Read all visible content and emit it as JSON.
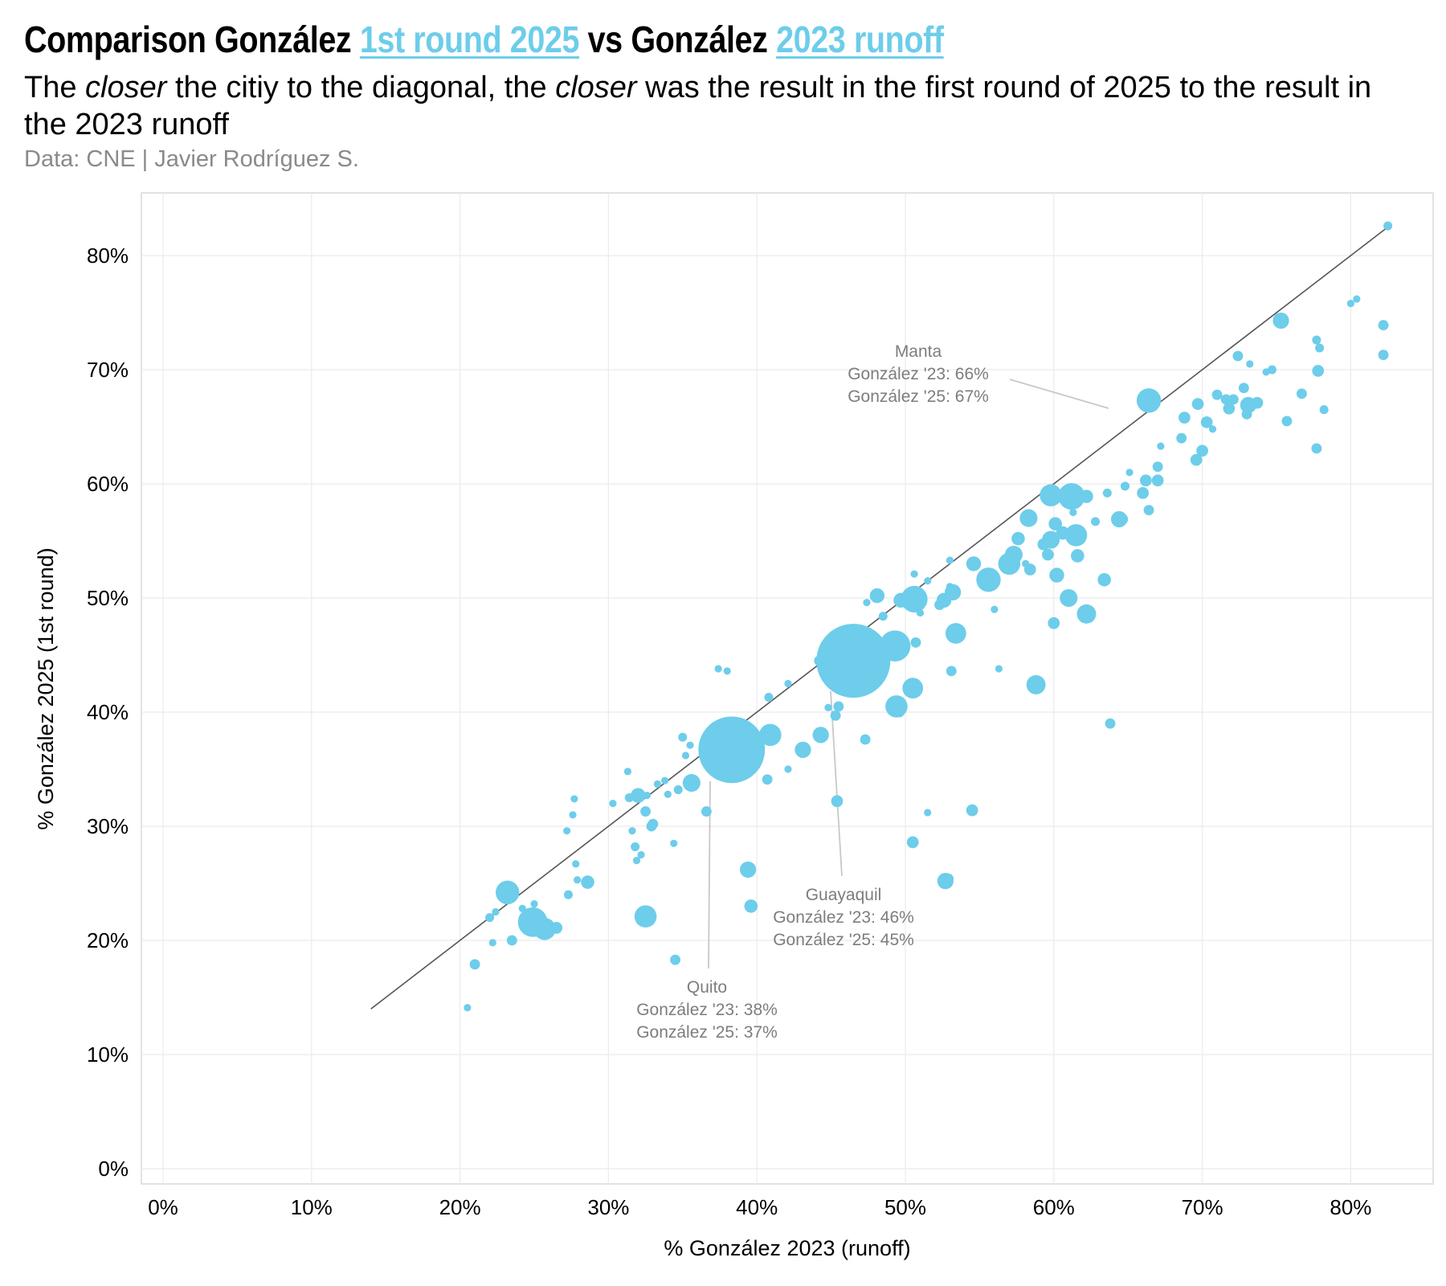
{
  "header": {
    "title_parts": [
      "Comparison González ",
      "1st round 2025",
      " vs González ",
      "2023 runoff"
    ],
    "subtitle_parts": [
      "The ",
      "closer",
      " the citiy to the diagonal, the ",
      "closer",
      " was the result in the first round of 2025 to the result in the 2023 runoff"
    ],
    "caption": "Data: CNE | Javier Rodríguez S."
  },
  "colors": {
    "accent": "#6dcdea",
    "diagonal": "#555555",
    "grid": "#ebebeb",
    "annotation": "#7d7d7d"
  },
  "chart_data": {
    "type": "scatter",
    "title": "Comparison González 1st round 2025 vs González 2023 runoff",
    "xlabel": "% González 2023 (runoff)",
    "ylabel": "% González 2025 (1st round)",
    "xlim": [
      0,
      85
    ],
    "ylim": [
      0,
      85
    ],
    "x_ticks": [
      0,
      10,
      20,
      30,
      40,
      50,
      60,
      70,
      80
    ],
    "y_ticks": [
      0,
      10,
      20,
      30,
      40,
      50,
      60,
      70,
      80
    ],
    "tick_labels": [
      "0%",
      "10%",
      "20%",
      "30%",
      "40%",
      "50%",
      "60%",
      "70%",
      "80%"
    ],
    "grid": true,
    "diagonal": {
      "from": 14,
      "to": 82.5
    },
    "points": [
      {
        "x": 46.5,
        "y": 44.5,
        "s": 10,
        "name": "Guayaquil"
      },
      {
        "x": 38.3,
        "y": 36.7,
        "s": 9,
        "name": "Quito"
      },
      {
        "x": 66.4,
        "y": 67.3,
        "s": 3.3,
        "name": "Manta"
      },
      {
        "x": 49.3,
        "y": 45.8,
        "s": 4.2
      },
      {
        "x": 50.6,
        "y": 49.9,
        "s": 3.6
      },
      {
        "x": 55.6,
        "y": 51.6,
        "s": 3.3
      },
      {
        "x": 61.2,
        "y": 58.9,
        "s": 3.6
      },
      {
        "x": 59.8,
        "y": 59.0,
        "s": 3.0
      },
      {
        "x": 61.5,
        "y": 55.5,
        "s": 3.0
      },
      {
        "x": 57.0,
        "y": 53.0,
        "s": 3.0
      },
      {
        "x": 53.4,
        "y": 46.9,
        "s": 2.8
      },
      {
        "x": 50.5,
        "y": 42.1,
        "s": 2.8
      },
      {
        "x": 49.4,
        "y": 40.5,
        "s": 3.0
      },
      {
        "x": 40.9,
        "y": 38.0,
        "s": 3.0
      },
      {
        "x": 37.1,
        "y": 36.0,
        "s": 3.2
      },
      {
        "x": 23.2,
        "y": 24.2,
        "s": 3.2
      },
      {
        "x": 24.9,
        "y": 21.6,
        "s": 4.0
      },
      {
        "x": 25.7,
        "y": 21.0,
        "s": 3.0
      },
      {
        "x": 32.5,
        "y": 22.1,
        "s": 3.0
      },
      {
        "x": 58.8,
        "y": 42.4,
        "s": 2.6
      },
      {
        "x": 62.2,
        "y": 48.6,
        "s": 2.6
      },
      {
        "x": 61.0,
        "y": 50.0,
        "s": 2.4
      },
      {
        "x": 58.3,
        "y": 57.0,
        "s": 2.4
      },
      {
        "x": 59.8,
        "y": 55.1,
        "s": 2.4
      },
      {
        "x": 64.4,
        "y": 56.9,
        "s": 2.2
      },
      {
        "x": 57.3,
        "y": 53.8,
        "s": 2.4
      },
      {
        "x": 75.3,
        "y": 74.3,
        "s": 2.2
      },
      {
        "x": 73.1,
        "y": 66.9,
        "s": 2.2
      },
      {
        "x": 35.6,
        "y": 33.8,
        "s": 2.4
      },
      {
        "x": 43.1,
        "y": 36.7,
        "s": 2.2
      },
      {
        "x": 44.3,
        "y": 38.0,
        "s": 2.2
      },
      {
        "x": 39.4,
        "y": 26.2,
        "s": 2.2
      },
      {
        "x": 52.7,
        "y": 25.2,
        "s": 2.2
      },
      {
        "x": 53.2,
        "y": 50.5,
        "s": 2.2
      },
      {
        "x": 52.6,
        "y": 49.8,
        "s": 2.0
      },
      {
        "x": 54.6,
        "y": 53.0,
        "s": 2.0
      },
      {
        "x": 48.1,
        "y": 50.2,
        "s": 2.0
      },
      {
        "x": 49.7,
        "y": 49.8,
        "s": 2.0
      },
      {
        "x": 60.2,
        "y": 52.0,
        "s": 2.0
      },
      {
        "x": 61.6,
        "y": 53.7,
        "s": 1.8
      },
      {
        "x": 62.2,
        "y": 58.9,
        "s": 1.8
      },
      {
        "x": 57.6,
        "y": 55.2,
        "s": 1.8
      },
      {
        "x": 60.1,
        "y": 56.5,
        "s": 1.8
      },
      {
        "x": 60.6,
        "y": 55.7,
        "s": 1.8
      },
      {
        "x": 59.3,
        "y": 54.7,
        "s": 1.6
      },
      {
        "x": 59.6,
        "y": 53.8,
        "s": 1.6
      },
      {
        "x": 58.4,
        "y": 52.5,
        "s": 1.6
      },
      {
        "x": 60.0,
        "y": 47.8,
        "s": 1.6
      },
      {
        "x": 63.4,
        "y": 51.6,
        "s": 1.8
      },
      {
        "x": 63.8,
        "y": 39.0,
        "s": 1.4
      },
      {
        "x": 54.5,
        "y": 31.4,
        "s": 1.6
      },
      {
        "x": 50.5,
        "y": 28.6,
        "s": 1.6
      },
      {
        "x": 45.4,
        "y": 32.2,
        "s": 1.6
      },
      {
        "x": 39.6,
        "y": 23.0,
        "s": 1.8
      },
      {
        "x": 32.0,
        "y": 32.7,
        "s": 2.0
      },
      {
        "x": 33.0,
        "y": 30.2,
        "s": 1.4
      },
      {
        "x": 32.9,
        "y": 30.0,
        "s": 1.4
      },
      {
        "x": 32.5,
        "y": 31.3,
        "s": 1.4
      },
      {
        "x": 28.6,
        "y": 25.1,
        "s": 1.8
      },
      {
        "x": 26.5,
        "y": 21.1,
        "s": 1.6
      },
      {
        "x": 23.5,
        "y": 20.0,
        "s": 1.4
      },
      {
        "x": 21.0,
        "y": 17.9,
        "s": 1.4
      },
      {
        "x": 20.5,
        "y": 14.1,
        "s": 1.0
      },
      {
        "x": 34.5,
        "y": 18.3,
        "s": 1.4
      },
      {
        "x": 36.6,
        "y": 31.3,
        "s": 1.4
      },
      {
        "x": 40.7,
        "y": 34.1,
        "s": 1.4
      },
      {
        "x": 44.2,
        "y": 44.5,
        "s": 1.4
      },
      {
        "x": 45.3,
        "y": 39.7,
        "s": 1.4
      },
      {
        "x": 45.5,
        "y": 40.5,
        "s": 1.4
      },
      {
        "x": 47.3,
        "y": 37.6,
        "s": 1.4
      },
      {
        "x": 49.6,
        "y": 40.0,
        "s": 1.4
      },
      {
        "x": 50.7,
        "y": 46.1,
        "s": 1.4
      },
      {
        "x": 53.1,
        "y": 43.6,
        "s": 1.4
      },
      {
        "x": 52.3,
        "y": 49.4,
        "s": 1.4
      },
      {
        "x": 64.6,
        "y": 56.9,
        "s": 1.6
      },
      {
        "x": 66.0,
        "y": 59.2,
        "s": 1.6
      },
      {
        "x": 66.2,
        "y": 60.3,
        "s": 1.6
      },
      {
        "x": 67.0,
        "y": 60.3,
        "s": 1.6
      },
      {
        "x": 66.4,
        "y": 57.7,
        "s": 1.4
      },
      {
        "x": 67.0,
        "y": 61.5,
        "s": 1.4
      },
      {
        "x": 68.6,
        "y": 64.0,
        "s": 1.4
      },
      {
        "x": 68.8,
        "y": 65.8,
        "s": 1.6
      },
      {
        "x": 69.7,
        "y": 67.0,
        "s": 1.6
      },
      {
        "x": 69.6,
        "y": 62.1,
        "s": 1.6
      },
      {
        "x": 70.0,
        "y": 62.9,
        "s": 1.6
      },
      {
        "x": 70.3,
        "y": 65.4,
        "s": 1.6
      },
      {
        "x": 71.0,
        "y": 67.8,
        "s": 1.4
      },
      {
        "x": 71.8,
        "y": 66.6,
        "s": 1.6
      },
      {
        "x": 71.6,
        "y": 67.4,
        "s": 1.4
      },
      {
        "x": 72.1,
        "y": 67.4,
        "s": 1.4
      },
      {
        "x": 72.4,
        "y": 71.2,
        "s": 1.4
      },
      {
        "x": 72.8,
        "y": 68.4,
        "s": 1.4
      },
      {
        "x": 73.0,
        "y": 66.1,
        "s": 1.4
      },
      {
        "x": 73.7,
        "y": 67.1,
        "s": 1.6
      },
      {
        "x": 74.7,
        "y": 70.0,
        "s": 1.2
      },
      {
        "x": 75.7,
        "y": 65.5,
        "s": 1.4
      },
      {
        "x": 76.7,
        "y": 67.9,
        "s": 1.4
      },
      {
        "x": 77.7,
        "y": 63.1,
        "s": 1.4
      },
      {
        "x": 77.8,
        "y": 69.9,
        "s": 1.6
      },
      {
        "x": 77.7,
        "y": 72.6,
        "s": 1.2
      },
      {
        "x": 77.9,
        "y": 71.9,
        "s": 1.2
      },
      {
        "x": 78.2,
        "y": 66.5,
        "s": 1.2
      },
      {
        "x": 80.0,
        "y": 75.8,
        "s": 1.0
      },
      {
        "x": 80.4,
        "y": 76.2,
        "s": 1.0
      },
      {
        "x": 82.2,
        "y": 73.9,
        "s": 1.4
      },
      {
        "x": 82.2,
        "y": 71.3,
        "s": 1.4
      },
      {
        "x": 82.5,
        "y": 82.6,
        "s": 1.2
      },
      {
        "x": 63.6,
        "y": 59.2,
        "s": 1.2
      },
      {
        "x": 62.8,
        "y": 56.7,
        "s": 1.2
      },
      {
        "x": 64.8,
        "y": 59.8,
        "s": 1.2
      },
      {
        "x": 65.1,
        "y": 61.0,
        "s": 1.0
      },
      {
        "x": 56.3,
        "y": 43.8,
        "s": 1.0
      },
      {
        "x": 56.0,
        "y": 49.0,
        "s": 1.0
      },
      {
        "x": 53.0,
        "y": 53.3,
        "s": 1.0
      },
      {
        "x": 51.5,
        "y": 51.5,
        "s": 1.0
      },
      {
        "x": 51.0,
        "y": 48.7,
        "s": 1.0
      },
      {
        "x": 48.5,
        "y": 48.4,
        "s": 1.2
      },
      {
        "x": 47.4,
        "y": 49.6,
        "s": 1.0
      },
      {
        "x": 46.8,
        "y": 46.6,
        "s": 1.0
      },
      {
        "x": 44.8,
        "y": 40.4,
        "s": 1.0
      },
      {
        "x": 42.1,
        "y": 42.5,
        "s": 1.0
      },
      {
        "x": 40.8,
        "y": 41.3,
        "s": 1.2
      },
      {
        "x": 38.0,
        "y": 43.6,
        "s": 1.0
      },
      {
        "x": 37.4,
        "y": 43.8,
        "s": 1.0
      },
      {
        "x": 42.1,
        "y": 35.0,
        "s": 1.0
      },
      {
        "x": 35.0,
        "y": 37.8,
        "s": 1.2
      },
      {
        "x": 35.2,
        "y": 36.2,
        "s": 1.0
      },
      {
        "x": 35.5,
        "y": 37.1,
        "s": 1.0
      },
      {
        "x": 34.0,
        "y": 32.8,
        "s": 1.0
      },
      {
        "x": 34.7,
        "y": 33.2,
        "s": 1.2
      },
      {
        "x": 33.8,
        "y": 34.0,
        "s": 1.0
      },
      {
        "x": 33.3,
        "y": 33.7,
        "s": 1.0
      },
      {
        "x": 32.6,
        "y": 32.7,
        "s": 1.0
      },
      {
        "x": 31.3,
        "y": 34.8,
        "s": 1.0
      },
      {
        "x": 31.4,
        "y": 32.5,
        "s": 1.2
      },
      {
        "x": 30.3,
        "y": 32.0,
        "s": 1.0
      },
      {
        "x": 31.6,
        "y": 29.6,
        "s": 1.0
      },
      {
        "x": 31.8,
        "y": 28.2,
        "s": 1.2
      },
      {
        "x": 32.2,
        "y": 27.5,
        "s": 1.0
      },
      {
        "x": 31.9,
        "y": 27.0,
        "s": 1.0
      },
      {
        "x": 34.4,
        "y": 28.5,
        "s": 1.0
      },
      {
        "x": 27.7,
        "y": 32.4,
        "s": 1.0
      },
      {
        "x": 27.6,
        "y": 31.0,
        "s": 1.0
      },
      {
        "x": 27.2,
        "y": 29.6,
        "s": 1.0
      },
      {
        "x": 27.8,
        "y": 26.7,
        "s": 1.0
      },
      {
        "x": 27.9,
        "y": 25.3,
        "s": 1.0
      },
      {
        "x": 27.3,
        "y": 24.0,
        "s": 1.2
      },
      {
        "x": 25.0,
        "y": 23.2,
        "s": 1.0
      },
      {
        "x": 24.2,
        "y": 22.8,
        "s": 1.0
      },
      {
        "x": 22.4,
        "y": 22.5,
        "s": 1.0
      },
      {
        "x": 22.0,
        "y": 22.0,
        "s": 1.2
      },
      {
        "x": 22.2,
        "y": 19.8,
        "s": 1.0
      },
      {
        "x": 55.8,
        "y": 51.2,
        "s": 1.0
      },
      {
        "x": 50.6,
        "y": 52.1,
        "s": 1.0
      },
      {
        "x": 53.0,
        "y": 51.0,
        "s": 1.0
      },
      {
        "x": 58.1,
        "y": 53.0,
        "s": 1.0
      },
      {
        "x": 61.0,
        "y": 59.0,
        "s": 1.0
      },
      {
        "x": 61.3,
        "y": 57.5,
        "s": 1.0
      },
      {
        "x": 67.2,
        "y": 63.3,
        "s": 1.0
      },
      {
        "x": 70.7,
        "y": 64.8,
        "s": 1.0
      },
      {
        "x": 73.2,
        "y": 70.5,
        "s": 1.0
      },
      {
        "x": 74.3,
        "y": 69.8,
        "s": 1.0
      },
      {
        "x": 51.5,
        "y": 31.2,
        "s": 1.0
      },
      {
        "x": 52.9,
        "y": 25.4,
        "s": 1.4
      }
    ],
    "annotations": [
      {
        "city": "Manta",
        "lines": [
          "Manta",
          "González '23: 66%",
          "González '25: 67%"
        ]
      },
      {
        "city": "Guayaquil",
        "lines": [
          "Guayaquil",
          "González '23: 46%",
          "González '25: 45%"
        ]
      },
      {
        "city": "Quito",
        "lines": [
          "Quito",
          "González '23: 38%",
          "González '25: 37%"
        ]
      }
    ]
  }
}
